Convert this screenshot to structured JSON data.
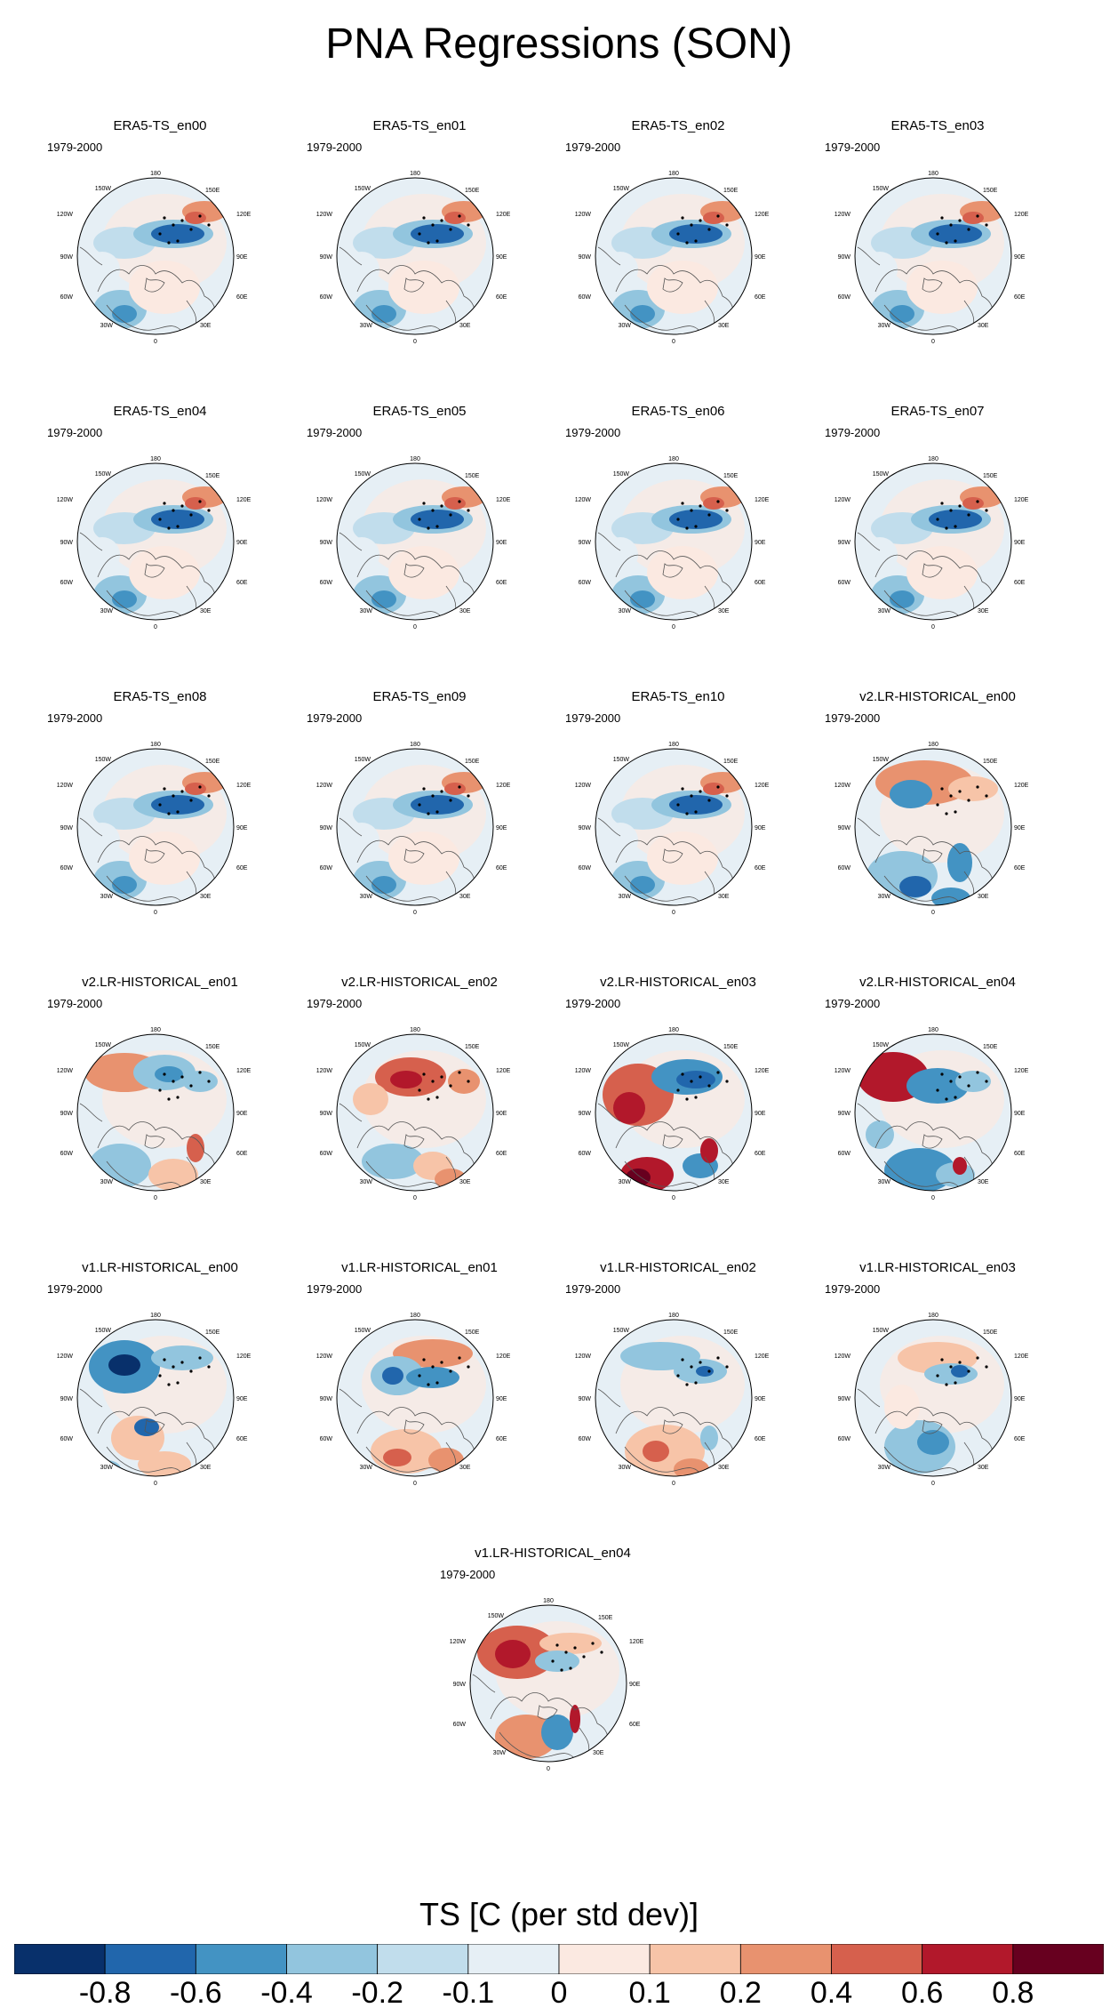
{
  "title": "PNA Regressions (SON)",
  "period_label": "1979-2000",
  "longitude_labels": {
    "top": "180",
    "top_left": "150W",
    "top_right": "150E",
    "upper_left": "120W",
    "upper_right": "120E",
    "left": "90W",
    "right": "90E",
    "lower_left": "60W",
    "lower_right": "60E",
    "bottom_left": "30W",
    "bottom_right": "30E",
    "bottom": "0"
  },
  "panels": [
    {
      "name": "ERA5-TS_en00",
      "pattern": "era5"
    },
    {
      "name": "ERA5-TS_en01",
      "pattern": "era5"
    },
    {
      "name": "ERA5-TS_en02",
      "pattern": "era5"
    },
    {
      "name": "ERA5-TS_en03",
      "pattern": "era5"
    },
    {
      "name": "ERA5-TS_en04",
      "pattern": "era5"
    },
    {
      "name": "ERA5-TS_en05",
      "pattern": "era5"
    },
    {
      "name": "ERA5-TS_en06",
      "pattern": "era5"
    },
    {
      "name": "ERA5-TS_en07",
      "pattern": "era5"
    },
    {
      "name": "ERA5-TS_en08",
      "pattern": "era5"
    },
    {
      "name": "ERA5-TS_en09",
      "pattern": "era5"
    },
    {
      "name": "ERA5-TS_en10",
      "pattern": "era5"
    },
    {
      "name": "v2.LR-HISTORICAL_en00",
      "pattern": "v2a"
    },
    {
      "name": "v2.LR-HISTORICAL_en01",
      "pattern": "v2b"
    },
    {
      "name": "v2.LR-HISTORICAL_en02",
      "pattern": "v2c"
    },
    {
      "name": "v2.LR-HISTORICAL_en03",
      "pattern": "v2d"
    },
    {
      "name": "v2.LR-HISTORICAL_en04",
      "pattern": "v2e"
    },
    {
      "name": "v1.LR-HISTORICAL_en00",
      "pattern": "v1a"
    },
    {
      "name": "v1.LR-HISTORICAL_en01",
      "pattern": "v1b"
    },
    {
      "name": "v1.LR-HISTORICAL_en02",
      "pattern": "v1c"
    },
    {
      "name": "v1.LR-HISTORICAL_en03",
      "pattern": "v1d"
    },
    {
      "name": "v1.LR-HISTORICAL_en04",
      "pattern": "v1e"
    }
  ],
  "colorbar": {
    "title": "TS [C (per std dev)]",
    "colors": [
      "#08306b",
      "#2166ac",
      "#4393c3",
      "#92c5de",
      "#c1ddec",
      "#e6eff5",
      "#fbe9e1",
      "#f7c4a8",
      "#e8926f",
      "#d6604d",
      "#b2182b",
      "#67001f"
    ],
    "tick_labels": [
      "-0.8",
      "-0.6",
      "-0.4",
      "-0.2",
      "-0.1",
      "0",
      "0.1",
      "0.2",
      "0.4",
      "0.6",
      "0.8"
    ]
  }
}
